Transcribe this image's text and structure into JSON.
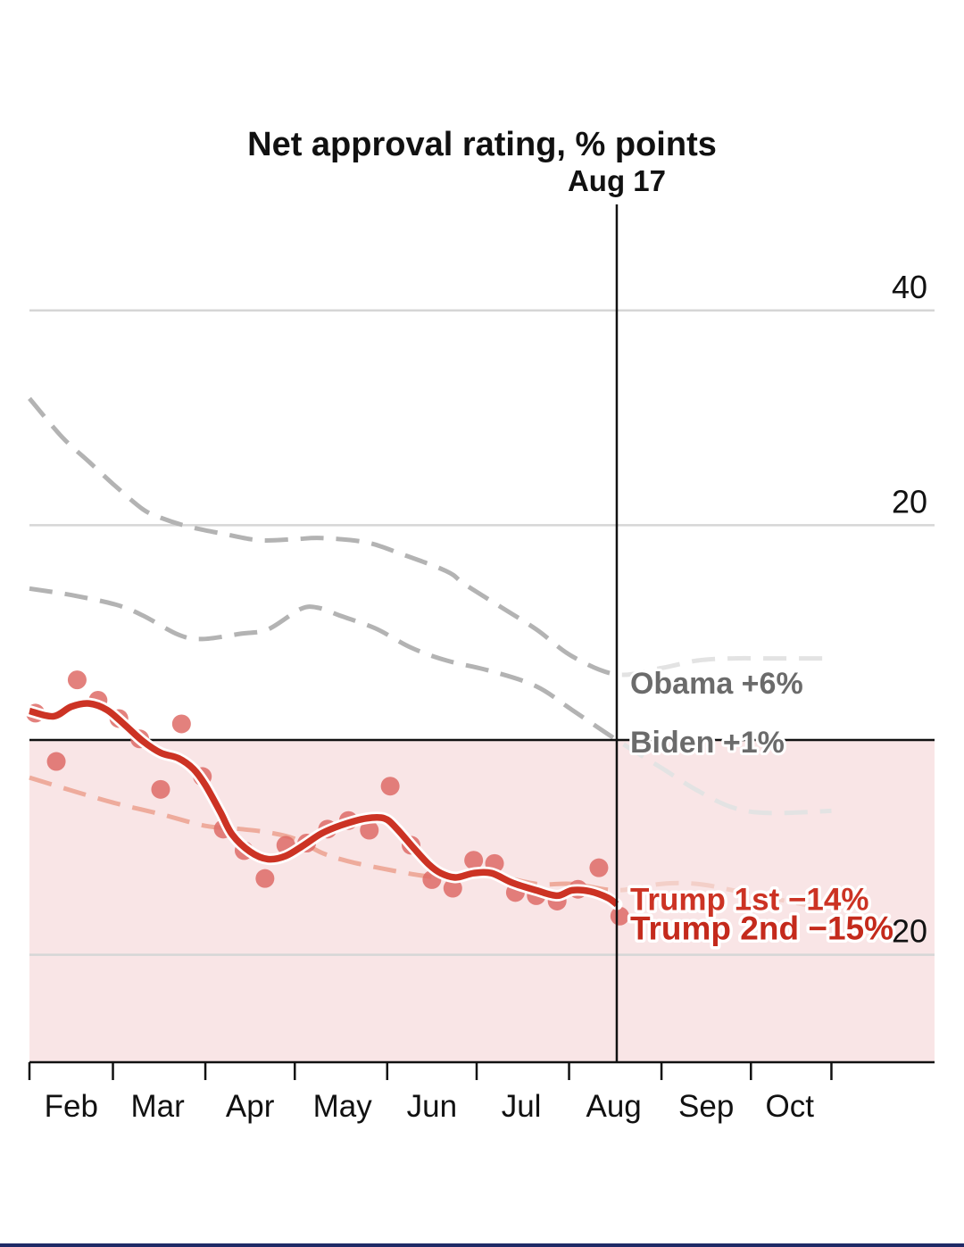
{
  "chart_data": {
    "type": "line",
    "title": "Net approval rating, % points",
    "xlabel": "",
    "ylabel": "Net approval rating, % points",
    "ylim": [
      -30,
      47
    ],
    "x_unit": "days since Feb 1",
    "xlim_days": [
      0,
      304
    ],
    "yticks": [
      {
        "value": 40,
        "label": "40"
      },
      {
        "value": 20,
        "label": "20"
      },
      {
        "value": -20,
        "label": "-20"
      }
    ],
    "zero_line": 0,
    "negative_shading": true,
    "grid": true,
    "month_ticks_days": [
      0,
      28,
      59,
      89,
      120,
      150,
      181,
      212,
      242,
      269
    ],
    "month_labels": [
      {
        "label": "Feb",
        "day": 14
      },
      {
        "label": "Mar",
        "day": 43
      },
      {
        "label": "Apr",
        "day": 74
      },
      {
        "label": "May",
        "day": 105
      },
      {
        "label": "Jun",
        "day": 135
      },
      {
        "label": "Jul",
        "day": 165
      },
      {
        "label": "Aug",
        "day": 196
      },
      {
        "label": "Sep",
        "day": 227
      },
      {
        "label": "Oct",
        "day": 255
      }
    ],
    "marker": {
      "label": "Aug 17",
      "day": 197
    },
    "series": [
      {
        "name": "Obama",
        "label": "Obama +6%",
        "style": "dashed",
        "color": "#b3b3b3",
        "color_after_marker": "#e3e3e3",
        "points": [
          [
            0,
            31.8
          ],
          [
            11,
            28.2
          ],
          [
            20,
            25.9
          ],
          [
            29,
            23.6
          ],
          [
            38,
            21.5
          ],
          [
            44,
            20.7
          ],
          [
            53,
            19.9
          ],
          [
            65,
            19.2
          ],
          [
            77,
            18.6
          ],
          [
            89,
            18.7
          ],
          [
            98,
            18.8
          ],
          [
            113,
            18.4
          ],
          [
            125,
            17.3
          ],
          [
            140,
            15.7
          ],
          [
            146,
            14.5
          ],
          [
            158,
            12.4
          ],
          [
            170,
            10.3
          ],
          [
            182,
            7.8
          ],
          [
            197,
            6.1
          ],
          [
            212,
            6.7
          ],
          [
            224,
            7.4
          ],
          [
            236,
            7.6
          ],
          [
            248,
            7.6
          ],
          [
            269,
            7.6
          ]
        ]
      },
      {
        "name": "Biden",
        "label": "Biden +1%",
        "style": "dashed",
        "color": "#b3b3b3",
        "color_after_marker": "#e3e3e3",
        "points": [
          [
            0,
            14.1
          ],
          [
            14,
            13.5
          ],
          [
            29,
            12.6
          ],
          [
            38,
            11.6
          ],
          [
            50,
            9.8
          ],
          [
            58,
            9.4
          ],
          [
            71,
            9.9
          ],
          [
            80,
            10.3
          ],
          [
            91,
            12.2
          ],
          [
            97,
            12.3
          ],
          [
            104,
            11.6
          ],
          [
            116,
            10.4
          ],
          [
            128,
            8.6
          ],
          [
            140,
            7.4
          ],
          [
            155,
            6.4
          ],
          [
            170,
            5.0
          ],
          [
            182,
            2.8
          ],
          [
            197,
            0.0
          ],
          [
            212,
            -2.6
          ],
          [
            224,
            -4.7
          ],
          [
            236,
            -6.3
          ],
          [
            248,
            -6.8
          ],
          [
            269,
            -6.6
          ]
        ]
      },
      {
        "name": "Trump 1st",
        "label": "Trump 1st −14%",
        "style": "dashed",
        "color": "#eeab9c",
        "color_after_marker": "#f3cfc8",
        "points": [
          [
            0,
            -3.5
          ],
          [
            14,
            -4.7
          ],
          [
            29,
            -5.9
          ],
          [
            44,
            -6.9
          ],
          [
            59,
            -8.0
          ],
          [
            71,
            -8.3
          ],
          [
            80,
            -8.6
          ],
          [
            89,
            -9.2
          ],
          [
            98,
            -10.5
          ],
          [
            107,
            -11.3
          ],
          [
            119,
            -12.0
          ],
          [
            131,
            -12.6
          ],
          [
            140,
            -12.8
          ],
          [
            152,
            -12.4
          ],
          [
            170,
            -13.4
          ],
          [
            182,
            -13.4
          ],
          [
            197,
            -14.0
          ],
          [
            212,
            -13.4
          ],
          [
            224,
            -13.4
          ],
          [
            236,
            -14.0
          ],
          [
            254,
            -15.0
          ],
          [
            269,
            -15.8
          ]
        ]
      },
      {
        "name": "Trump 2nd",
        "label": "Trump 2nd −15%",
        "style": "solid",
        "color": "#cc3324",
        "points": [
          [
            0,
            2.7
          ],
          [
            8,
            2.2
          ],
          [
            14,
            3.1
          ],
          [
            20,
            3.4
          ],
          [
            26,
            2.8
          ],
          [
            32,
            1.4
          ],
          [
            38,
            -0.1
          ],
          [
            44,
            -1.2
          ],
          [
            50,
            -1.7
          ],
          [
            55,
            -2.7
          ],
          [
            59,
            -4.2
          ],
          [
            64,
            -6.7
          ],
          [
            68,
            -8.8
          ],
          [
            74,
            -10.4
          ],
          [
            80,
            -11.1
          ],
          [
            86,
            -10.8
          ],
          [
            92,
            -9.8
          ],
          [
            98,
            -8.7
          ],
          [
            105,
            -7.9
          ],
          [
            113,
            -7.3
          ],
          [
            119,
            -7.3
          ],
          [
            123,
            -8.2
          ],
          [
            129,
            -10.1
          ],
          [
            134,
            -11.6
          ],
          [
            138,
            -12.4
          ],
          [
            143,
            -12.8
          ],
          [
            149,
            -12.4
          ],
          [
            155,
            -12.4
          ],
          [
            162,
            -13.3
          ],
          [
            170,
            -14.0
          ],
          [
            177,
            -14.5
          ],
          [
            182,
            -14.0
          ],
          [
            188,
            -14.1
          ],
          [
            194,
            -14.7
          ],
          [
            197,
            -15.3
          ]
        ]
      }
    ],
    "polls": {
      "name": "Trump 2nd polls",
      "color": "#de6b66",
      "points": [
        [
          2,
          2.5
        ],
        [
          9,
          -2.0
        ],
        [
          16,
          5.6
        ],
        [
          23,
          3.7
        ],
        [
          30,
          2.0
        ],
        [
          37,
          0.1
        ],
        [
          44,
          -4.6
        ],
        [
          51,
          1.5
        ],
        [
          58,
          -3.4
        ],
        [
          65,
          -8.3
        ],
        [
          72,
          -10.3
        ],
        [
          79,
          -12.9
        ],
        [
          86,
          -9.8
        ],
        [
          93,
          -9.6
        ],
        [
          100,
          -8.3
        ],
        [
          107,
          -7.5
        ],
        [
          114,
          -8.4
        ],
        [
          121,
          -4.3
        ],
        [
          128,
          -9.8
        ],
        [
          135,
          -13.0
        ],
        [
          142,
          -13.8
        ],
        [
          149,
          -11.2
        ],
        [
          156,
          -11.5
        ],
        [
          163,
          -14.2
        ],
        [
          170,
          -14.5
        ],
        [
          177,
          -15.0
        ],
        [
          184,
          -13.9
        ],
        [
          191,
          -11.9
        ],
        [
          198,
          -16.4
        ]
      ]
    }
  }
}
